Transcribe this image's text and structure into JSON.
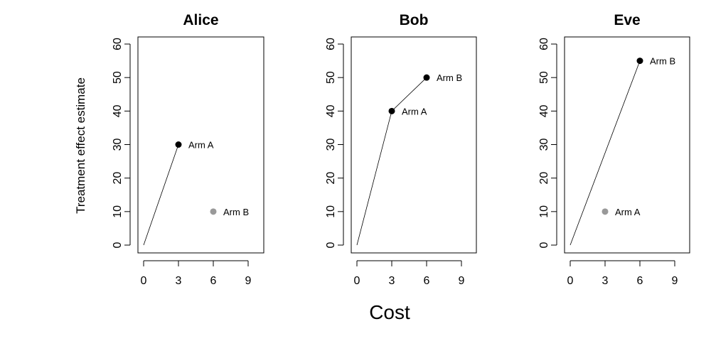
{
  "figure": {
    "xlabel": "Cost",
    "ylabel": "Treatment effect estimate"
  },
  "colors": {
    "frontier_point": "#000000",
    "dominated_point": "#999999",
    "line": "#000000",
    "frame": "#000000"
  },
  "chart_data": [
    {
      "type": "scatter",
      "title": "Alice",
      "xlim": [
        0,
        9
      ],
      "ylim": [
        0,
        60
      ],
      "xticks": [
        "0",
        "3",
        "6",
        "9"
      ],
      "yticks": [
        "0",
        "10",
        "20",
        "30",
        "40",
        "50",
        "60"
      ],
      "points": [
        {
          "label": "Arm A",
          "x": 3,
          "y": 30,
          "frontier": true
        },
        {
          "label": "Arm B",
          "x": 6,
          "y": 10,
          "frontier": false
        }
      ],
      "line": [
        [
          0,
          0
        ],
        [
          3,
          30
        ]
      ]
    },
    {
      "type": "scatter",
      "title": "Bob",
      "xlim": [
        0,
        9
      ],
      "ylim": [
        0,
        60
      ],
      "xticks": [
        "0",
        "3",
        "6",
        "9"
      ],
      "yticks": [
        "0",
        "10",
        "20",
        "30",
        "40",
        "50",
        "60"
      ],
      "points": [
        {
          "label": "Arm A",
          "x": 3,
          "y": 40,
          "frontier": true
        },
        {
          "label": "Arm B",
          "x": 6,
          "y": 50,
          "frontier": true
        }
      ],
      "line": [
        [
          0,
          0
        ],
        [
          3,
          40
        ],
        [
          6,
          50
        ]
      ]
    },
    {
      "type": "scatter",
      "title": "Eve",
      "xlim": [
        0,
        9
      ],
      "ylim": [
        0,
        60
      ],
      "xticks": [
        "0",
        "3",
        "6",
        "9"
      ],
      "yticks": [
        "0",
        "10",
        "20",
        "30",
        "40",
        "50",
        "60"
      ],
      "points": [
        {
          "label": "Arm B",
          "x": 6,
          "y": 55,
          "frontier": true
        },
        {
          "label": "Arm A",
          "x": 3,
          "y": 10,
          "frontier": false
        }
      ],
      "line": [
        [
          0,
          0
        ],
        [
          6,
          55
        ]
      ]
    }
  ]
}
